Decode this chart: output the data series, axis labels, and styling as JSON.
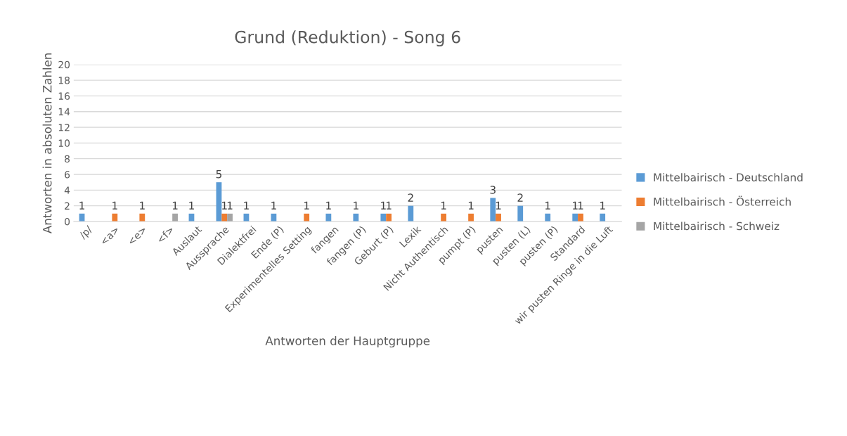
{
  "chart_data": {
    "type": "bar",
    "title": "Grund (Reduktion) - Song 6",
    "xlabel": "Antworten der Hauptgruppe",
    "ylabel": "Antworten in absoluten Zahlen",
    "categories": [
      "/p/",
      "<a>",
      "<e>",
      "<f>",
      "Auslaut",
      "Aussprache",
      "Dialektfrei",
      "Ende (P)",
      "Experimentelles Setting",
      "fangen",
      "fangen (P)",
      "Geburt (P)",
      "Lexik",
      "Nicht Authentisch",
      "pumpt (P)",
      "pusten",
      "pusten (L)",
      "pusten (P)",
      "Standard",
      "wir pusten Ringe in die Luft"
    ],
    "series": [
      {
        "name": "Mittelbairisch - Deutschland",
        "color": "#5b9bd5",
        "values": [
          1,
          null,
          null,
          null,
          1,
          5,
          1,
          1,
          null,
          1,
          1,
          1,
          2,
          null,
          null,
          3,
          2,
          1,
          1,
          1
        ]
      },
      {
        "name": "Mittelbairisch - Österreich",
        "color": "#ed7d31",
        "values": [
          null,
          1,
          1,
          null,
          null,
          1,
          null,
          null,
          1,
          null,
          null,
          1,
          null,
          1,
          1,
          1,
          null,
          null,
          1,
          null
        ]
      },
      {
        "name": "Mittelbairisch - Schweiz",
        "color": "#a5a5a5",
        "values": [
          null,
          null,
          null,
          1,
          null,
          1,
          null,
          null,
          null,
          null,
          null,
          null,
          null,
          null,
          null,
          null,
          null,
          null,
          null,
          null
        ]
      }
    ],
    "ylim": [
      0,
      20
    ],
    "yticks": [
      0,
      2,
      4,
      6,
      8,
      10,
      12,
      14,
      16,
      18,
      20
    ],
    "grid": "y",
    "legend": "right",
    "data_labels": true
  }
}
